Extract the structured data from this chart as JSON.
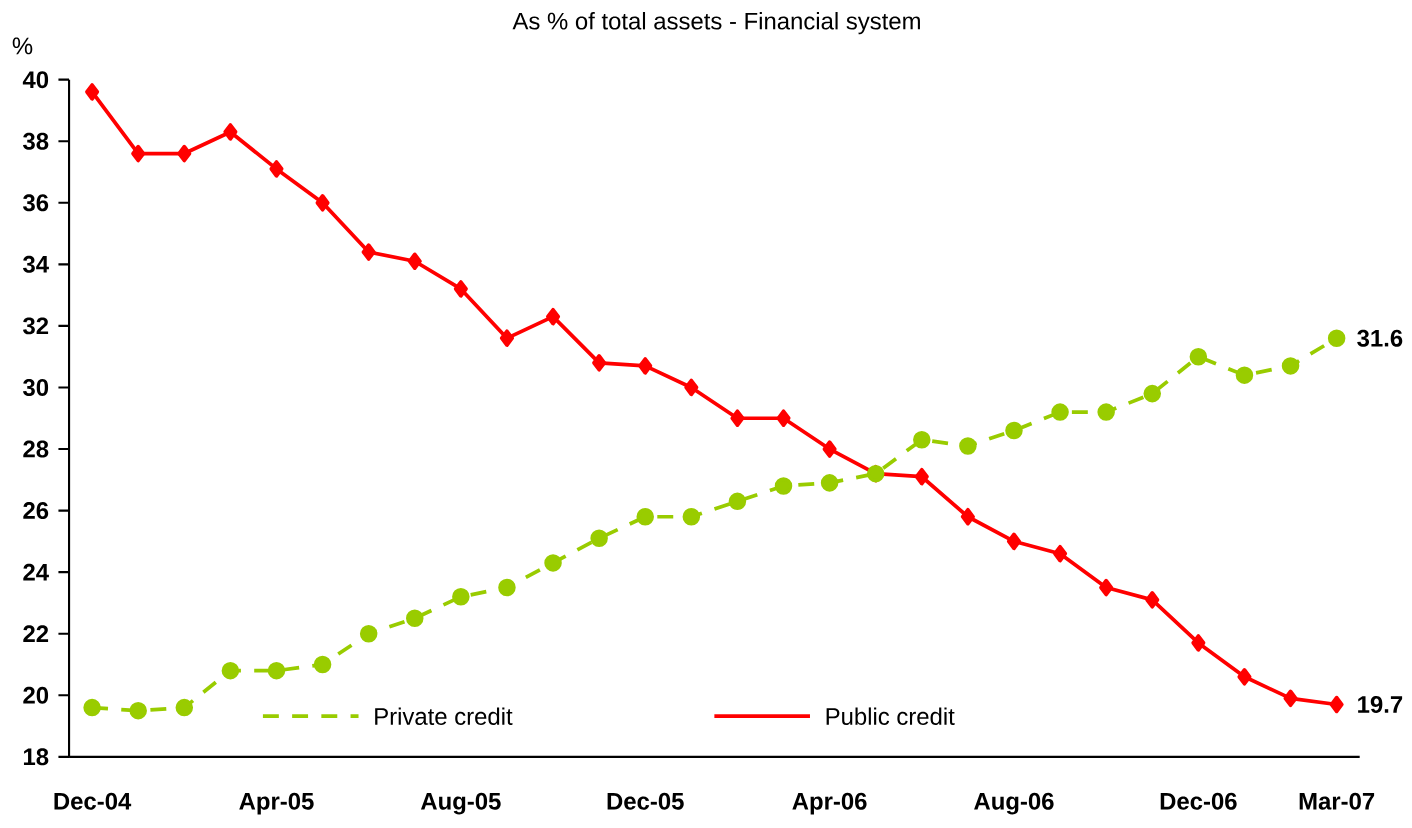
{
  "chart_data": {
    "type": "line",
    "title": "As % of total assets - Financial system",
    "ylabel": "%",
    "categories": [
      "Dec-04",
      null,
      null,
      null,
      "Apr-05",
      null,
      null,
      null,
      "Aug-05",
      null,
      null,
      null,
      "Dec-05",
      null,
      null,
      null,
      "Apr-06",
      null,
      null,
      null,
      "Aug-06",
      null,
      null,
      null,
      "Dec-06",
      null,
      null,
      "Mar-07"
    ],
    "series": [
      {
        "name": "Private credit",
        "color": "#99cc00",
        "marker": "circle",
        "line_style": "dashed",
        "values": [
          19.6,
          19.5,
          19.6,
          20.8,
          20.8,
          21.0,
          22.0,
          22.5,
          23.2,
          23.5,
          24.3,
          25.1,
          25.8,
          25.8,
          26.3,
          26.8,
          26.9,
          27.2,
          28.3,
          28.1,
          28.6,
          29.2,
          29.2,
          29.8,
          31.0,
          30.4,
          30.7,
          31.6
        ],
        "value_labels": [
          null,
          null,
          null,
          null,
          null,
          null,
          null,
          null,
          null,
          null,
          null,
          null,
          null,
          null,
          null,
          null,
          null,
          null,
          null,
          null,
          null,
          null,
          null,
          null,
          null,
          null,
          null,
          "31.6"
        ]
      },
      {
        "name": "Public credit",
        "color": "#ff0000",
        "marker": "diamond",
        "line_style": "solid",
        "values": [
          39.6,
          37.6,
          37.6,
          38.3,
          37.1,
          36.0,
          34.4,
          34.1,
          33.2,
          31.6,
          32.3,
          30.8,
          30.7,
          30.0,
          29.0,
          29.0,
          28.0,
          27.2,
          27.1,
          25.8,
          25.0,
          24.6,
          23.5,
          23.1,
          21.7,
          20.6,
          19.9,
          19.7
        ],
        "value_labels": [
          null,
          null,
          null,
          null,
          null,
          null,
          null,
          null,
          null,
          null,
          null,
          null,
          null,
          null,
          null,
          null,
          null,
          null,
          null,
          null,
          null,
          null,
          null,
          null,
          null,
          null,
          null,
          "19.7"
        ]
      }
    ],
    "ylim": [
      18,
      40
    ],
    "yticks": [
      18,
      20,
      22,
      24,
      26,
      28,
      30,
      32,
      34,
      36,
      38,
      40
    ],
    "grid": false,
    "legend": "bottom"
  }
}
